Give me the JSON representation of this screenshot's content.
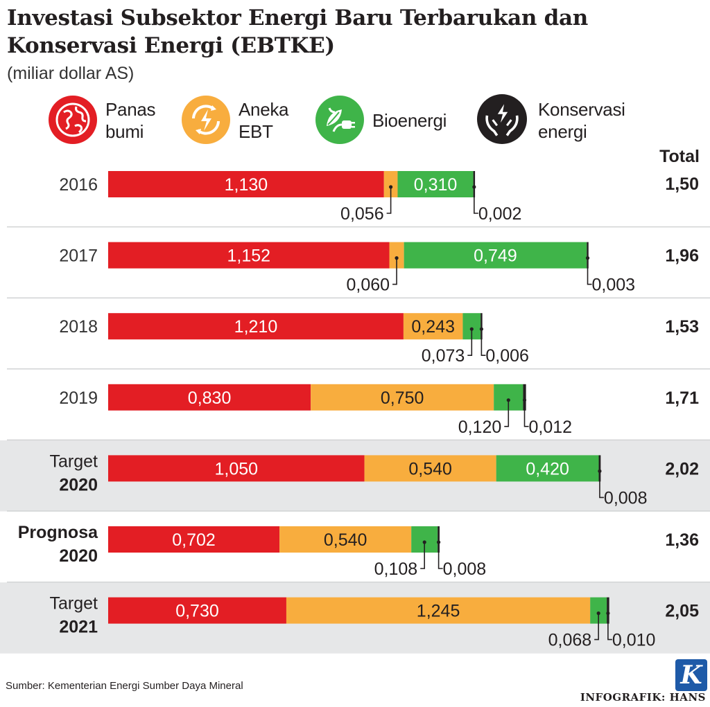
{
  "header": {
    "title": "Investasi Subsektor Energi Baru Terbarukan dan Konservasi Energi (EBTKE)",
    "subtitle": "(miliar dollar AS)"
  },
  "legend": [
    {
      "label": "Panas bumi",
      "icon": "globe-icon",
      "color": "#e31e24"
    },
    {
      "label": "Aneka EBT",
      "icon": "renewable-energy-icon",
      "color": "#f8ad3e"
    },
    {
      "label": "Bioenergi",
      "icon": "leaf-plug-icon",
      "color": "#3fb449"
    },
    {
      "label": "Konservasi energi",
      "icon": "hands-energy-icon",
      "color": "#231f20"
    }
  ],
  "chart_data": {
    "type": "bar",
    "stacked": true,
    "orientation": "horizontal",
    "title": "Investasi Subsektor Energi Baru Terbarukan dan Konservasi Energi (EBTKE)",
    "unit": "miliar dollar AS",
    "total_label": "Total",
    "categories": [
      {
        "line1": "2016",
        "line2": ""
      },
      {
        "line1": "2017",
        "line2": ""
      },
      {
        "line1": "2018",
        "line2": ""
      },
      {
        "line1": "2019",
        "line2": ""
      },
      {
        "line1": "Target",
        "line2": "2020"
      },
      {
        "line1": "Prognosa",
        "line2": "2020"
      },
      {
        "line1": "Target",
        "line2": "2021"
      }
    ],
    "series": [
      {
        "name": "Panas bumi",
        "color": "#e31e24",
        "values": [
          1.13,
          1.152,
          1.21,
          0.83,
          1.05,
          0.702,
          0.73
        ],
        "labels": [
          "1,130",
          "1,152",
          "1,210",
          "0,830",
          "1,050",
          "0,702",
          "0,730"
        ]
      },
      {
        "name": "Aneka EBT",
        "color": "#f8ad3e",
        "values": [
          0.056,
          0.06,
          0.243,
          0.75,
          0.54,
          0.54,
          1.245
        ],
        "labels": [
          "0,056",
          "0,060",
          "0,243",
          "0,750",
          "0,540",
          "0,540",
          "1,245"
        ]
      },
      {
        "name": "Bioenergi",
        "color": "#3fb449",
        "values": [
          0.31,
          0.749,
          0.073,
          0.12,
          0.42,
          0.108,
          0.068
        ],
        "labels": [
          "0,310",
          "0,749",
          "0,073",
          "0,120",
          "0,420",
          "0,108",
          "0,068"
        ]
      },
      {
        "name": "Konservasi energi",
        "color": "#231f20",
        "values": [
          0.002,
          0.003,
          0.006,
          0.012,
          0.008,
          0.008,
          0.01
        ],
        "labels": [
          "0,002",
          "0,003",
          "0,006",
          "0,012",
          "0,008",
          "0,008",
          "0,010"
        ]
      }
    ],
    "totals": [
      "1,50",
      "1,96",
      "1,53",
      "1,71",
      "2,02",
      "1,36",
      "2,05"
    ],
    "highlight_rows": [
      4,
      6
    ],
    "highlight_color": "#e6e7e8"
  },
  "footer": {
    "source": "Sumber: Kementerian Energi Sumber Daya Mineral",
    "credit": "INFOGRAFIK: HANS",
    "logo_letter": "K"
  }
}
